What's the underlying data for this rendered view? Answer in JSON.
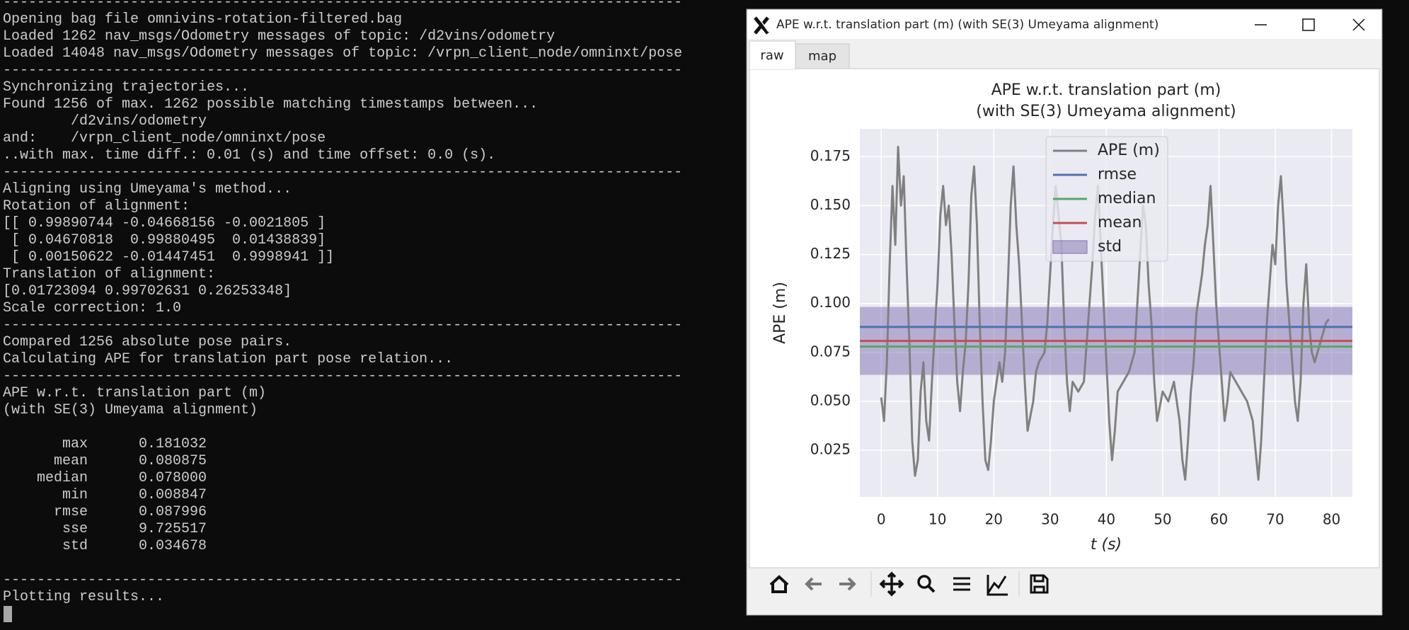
{
  "terminal": {
    "separator": "--------------------------------------------------------------------------------",
    "sections": [
      {
        "lines": [
          "Opening bag file omnivins-rotation-filtered.bag",
          "Loaded 1262 nav_msgs/Odometry messages of topic: /d2vins/odometry",
          "Loaded 14048 nav_msgs/Odometry messages of topic: /vrpn_client_node/omninxt/pose"
        ]
      },
      {
        "lines": [
          "Synchronizing trajectories...",
          "Found 1256 of max. 1262 possible matching timestamps between...",
          "        /d2vins/odometry",
          "and:    /vrpn_client_node/omninxt/pose",
          "..with max. time diff.: 0.01 (s) and time offset: 0.0 (s)."
        ]
      },
      {
        "lines": [
          "Aligning using Umeyama's method...",
          "Rotation of alignment:",
          "[[ 0.99890744 -0.04668156 -0.0021805 ]",
          " [ 0.04670818  0.99880495  0.01438839]",
          " [ 0.00150622 -0.01447451  0.9998941 ]]",
          "Translation of alignment:",
          "[0.01723094 0.99702631 0.26253348]",
          "Scale correction: 1.0"
        ]
      },
      {
        "lines": [
          "Compared 1256 absolute pose pairs.",
          "Calculating APE for translation part pose relation..."
        ]
      },
      {
        "lines": [
          "APE w.r.t. translation part (m)",
          "(with SE(3) Umeyama alignment)"
        ],
        "stats": [
          [
            "max",
            "0.181032"
          ],
          [
            "mean",
            "0.080875"
          ],
          [
            "median",
            "0.078000"
          ],
          [
            "min",
            "0.008847"
          ],
          [
            "rmse",
            "0.087996"
          ],
          [
            "sse",
            "9.725517"
          ],
          [
            "std",
            "0.034678"
          ]
        ]
      },
      {
        "lines": [
          "Plotting results..."
        ]
      }
    ]
  },
  "window": {
    "title": "APE w.r.t. translation part (m) (with SE(3) Umeyama alignment)",
    "tabs": [
      "raw",
      "map"
    ]
  },
  "chart_data": {
    "type": "line",
    "title": [
      "APE w.r.t. translation part (m)",
      "(with SE(3) Umeyama alignment)"
    ],
    "x_label": "t (s)",
    "y_label": "APE (m)",
    "xlim": [
      -3.8,
      83.7
    ],
    "ylim": [
      0.0012,
      0.1892
    ],
    "xticks": [
      0,
      10,
      20,
      30,
      40,
      50,
      60,
      70,
      80
    ],
    "yticks": [
      0.025,
      {
        "value": 0.05,
        "label": "0.050"
      },
      0.075,
      {
        "value": 0.1,
        "label": "0.100"
      },
      0.125,
      {
        "value": 0.15,
        "label": "0.150"
      },
      0.175
    ],
    "grid": true,
    "legend": "upper center",
    "x": [
      0,
      0.5,
      1,
      1.5,
      2,
      2.5,
      3,
      3.5,
      4,
      4.5,
      5,
      5.5,
      6,
      6.5,
      7,
      7.5,
      8,
      8.5,
      9,
      9.5,
      10,
      10.5,
      11,
      11.5,
      12,
      12.5,
      13,
      13.5,
      14,
      14.5,
      15,
      15.5,
      16,
      16.5,
      17,
      17.5,
      18,
      18.5,
      19,
      19.5,
      20,
      21,
      21.5,
      22,
      22.5,
      23,
      23.5,
      24,
      24.5,
      25,
      25.5,
      26,
      27,
      27.5,
      28,
      29,
      29.5,
      30,
      30.5,
      31,
      31.5,
      32,
      32.5,
      33,
      33.5,
      34,
      35,
      36,
      36.5,
      37,
      37.5,
      38,
      38.5,
      39,
      39.5,
      40,
      40.5,
      41,
      41.5,
      42,
      43,
      44,
      45,
      45.5,
      46,
      46.5,
      47,
      47.5,
      48,
      48.5,
      49,
      50,
      51,
      52,
      53,
      53.5,
      54,
      54.5,
      55,
      55.5,
      56,
      57,
      57.5,
      58,
      58.5,
      59,
      59.5,
      60,
      60.5,
      61,
      61.5,
      62,
      63,
      64,
      65,
      66,
      66.5,
      67,
      67.5,
      68,
      68.5,
      69,
      69.5,
      70,
      70.5,
      71,
      71.5,
      72,
      72.5,
      73,
      73.5,
      74,
      74.5,
      75,
      75.5,
      76,
      76.5,
      77,
      77.5,
      78,
      78.5,
      79,
      79.5
    ],
    "series": [
      {
        "name": "APE (m)",
        "color": "#808080",
        "values": [
          0.052,
          0.04,
          0.07,
          0.12,
          0.16,
          0.13,
          0.18,
          0.15,
          0.165,
          0.12,
          0.08,
          0.03,
          0.012,
          0.02,
          0.055,
          0.07,
          0.04,
          0.03,
          0.06,
          0.085,
          0.11,
          0.145,
          0.16,
          0.14,
          0.15,
          0.125,
          0.09,
          0.06,
          0.045,
          0.065,
          0.08,
          0.11,
          0.155,
          0.17,
          0.14,
          0.09,
          0.05,
          0.02,
          0.015,
          0.03,
          0.05,
          0.07,
          0.06,
          0.075,
          0.11,
          0.15,
          0.17,
          0.14,
          0.12,
          0.09,
          0.06,
          0.035,
          0.05,
          0.065,
          0.07,
          0.075,
          0.09,
          0.115,
          0.14,
          0.16,
          0.145,
          0.13,
          0.09,
          0.06,
          0.045,
          0.06,
          0.055,
          0.06,
          0.08,
          0.1,
          0.12,
          0.145,
          0.16,
          0.13,
          0.1,
          0.07,
          0.04,
          0.02,
          0.035,
          0.055,
          0.06,
          0.065,
          0.075,
          0.1,
          0.125,
          0.15,
          0.14,
          0.11,
          0.09,
          0.06,
          0.04,
          0.055,
          0.05,
          0.06,
          0.04,
          0.02,
          0.01,
          0.03,
          0.055,
          0.07,
          0.095,
          0.115,
          0.13,
          0.14,
          0.16,
          0.13,
          0.1,
          0.08,
          0.06,
          0.04,
          0.05,
          0.065,
          0.06,
          0.055,
          0.05,
          0.04,
          0.025,
          0.01,
          0.03,
          0.06,
          0.09,
          0.11,
          0.13,
          0.12,
          0.15,
          0.165,
          0.14,
          0.11,
          0.09,
          0.07,
          0.05,
          0.04,
          0.06,
          0.1,
          0.12,
          0.09,
          0.075,
          0.07,
          0.075,
          0.08,
          0.085,
          0.09,
          0.092
        ]
      }
    ],
    "stats": [
      {
        "name": "rmse",
        "value": 0.087996,
        "color": "#4c72b0"
      },
      {
        "name": "median",
        "value": 0.078,
        "color": "#55a868"
      },
      {
        "name": "mean",
        "value": 0.080875,
        "color": "#c44e52"
      },
      {
        "name": "std",
        "value": 0.034678,
        "color": "#8172b2"
      }
    ]
  }
}
